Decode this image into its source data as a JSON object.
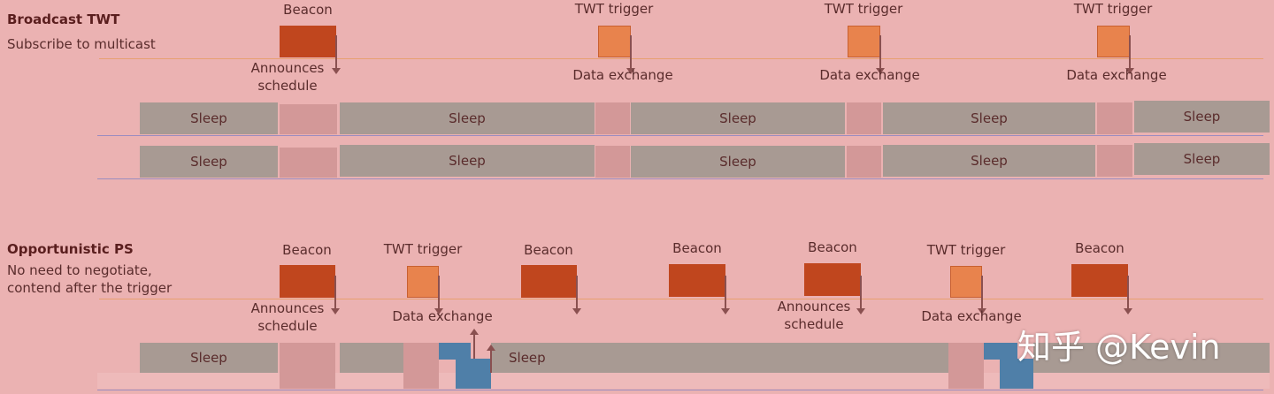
{
  "broadcast": {
    "title": "Broadcast TWT",
    "subtitle": "Subscribe to multicast",
    "beacon": "Beacon",
    "trigger": "TWT trigger",
    "announces": "Announces",
    "schedule": "schedule",
    "data_exchange": "Data exchange",
    "sleep": "Sleep"
  },
  "opportunistic": {
    "title": "Opportunistic PS",
    "subtitle1": "No need to negotiate,",
    "subtitle2": "contend after the trigger",
    "beacon": "Beacon",
    "trigger": "TWT trigger",
    "announces": "Announces",
    "schedule": "schedule",
    "data_exchange": "Data exchange",
    "sleep": "Sleep"
  },
  "watermark": "知乎 @Kevin",
  "colors": {
    "background": "#ebb2b2",
    "beacon": "#c0461e",
    "trigger": "#e8834d",
    "sleep": "#a89a93",
    "awake": "#d39898",
    "transmit": "#4f7fa8"
  }
}
